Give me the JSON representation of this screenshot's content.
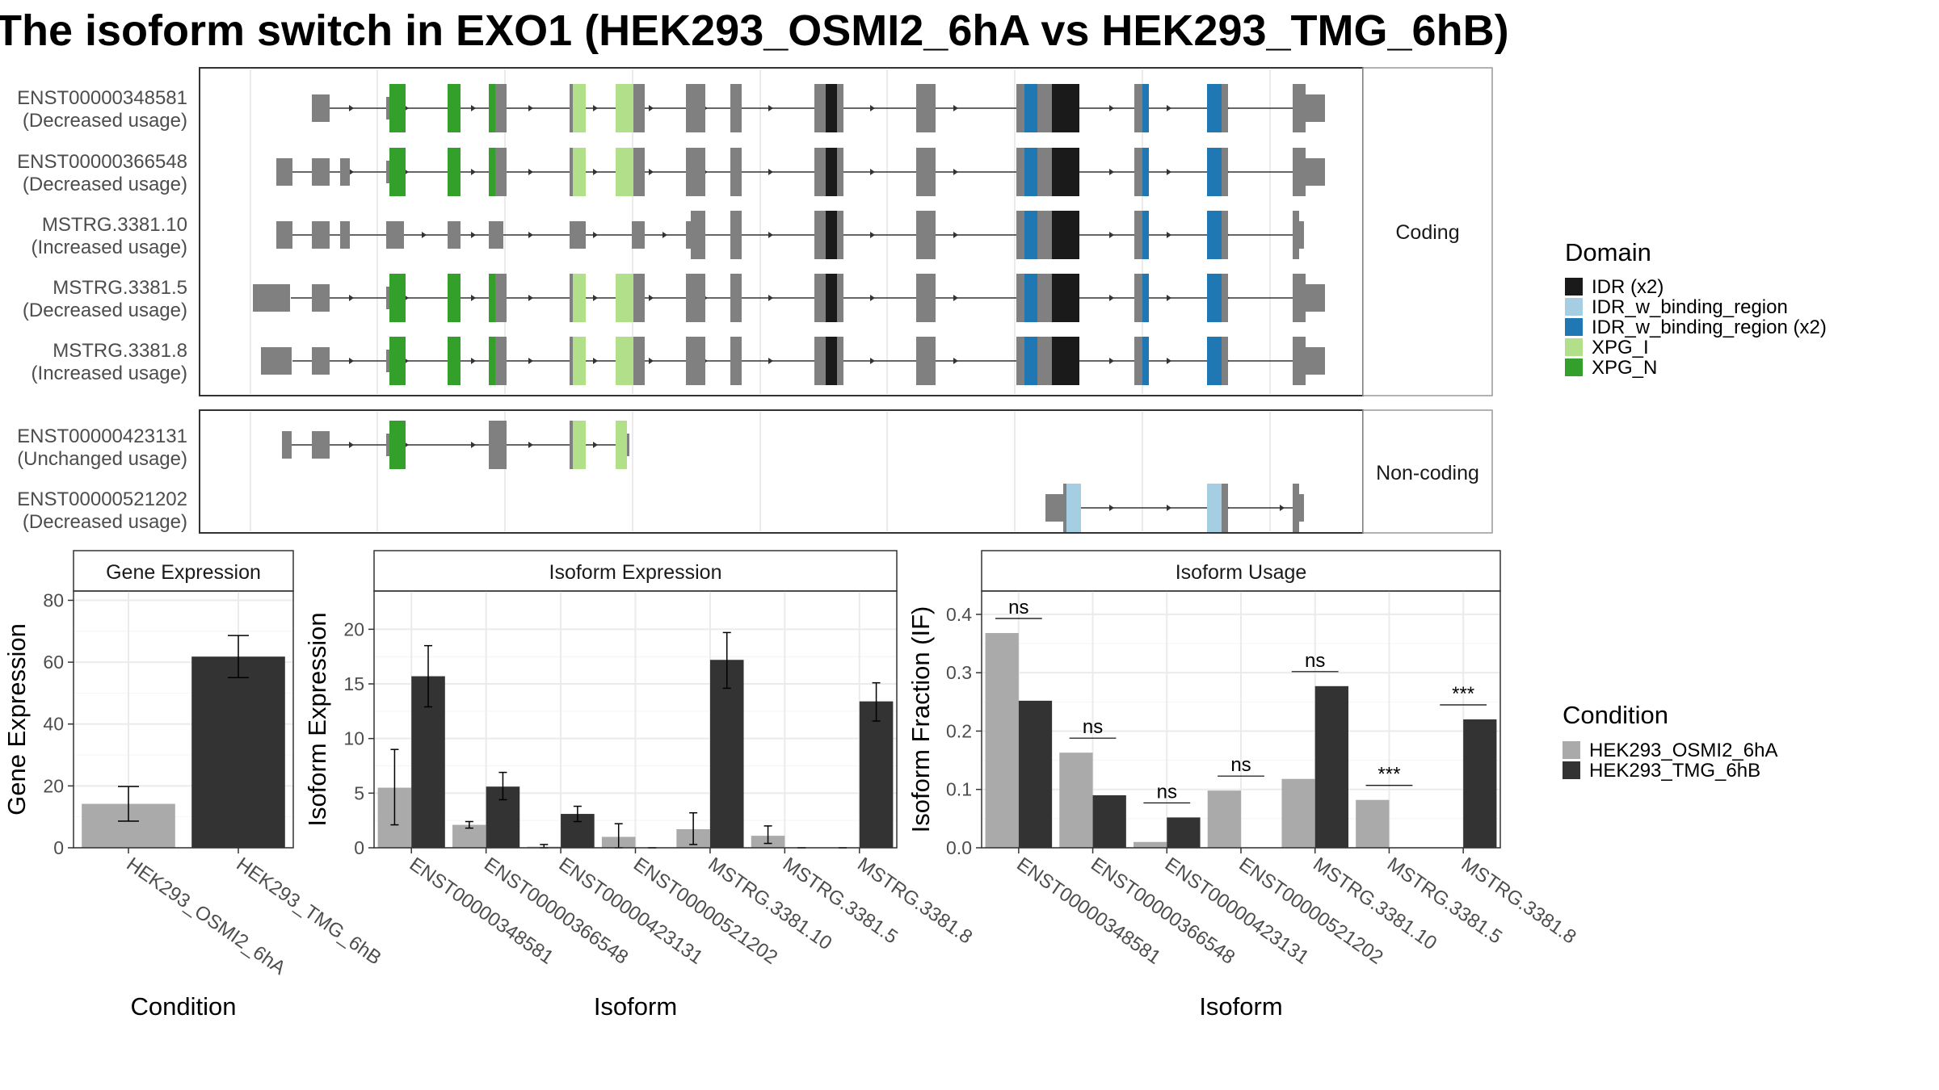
{
  "title": "The isoform switch in EXO1 (HEK293_OSMI2_6hA vs HEK293_TMG_6hB)",
  "colors": {
    "IDR (x2)": "#1a1a1a",
    "IDR_w_binding_region": "#a6cee3",
    "IDR_w_binding_region (x2)": "#1f78b4",
    "XPG_I": "#b2df8a",
    "XPG_N": "#33a02c",
    "exon": "#808080",
    "cond_a": "#aaaaaa",
    "cond_b": "#333333"
  },
  "structure": {
    "facets": [
      "Coding",
      "Non-coding"
    ],
    "exon_ranges": [
      [
        0.0,
        0.03
      ],
      [
        0.05,
        0.08
      ],
      [
        0.08,
        0.12
      ],
      [
        0.14,
        0.21
      ],
      [
        0.25,
        0.4
      ],
      [
        0.42,
        0.55
      ],
      [
        0.6,
        0.66
      ],
      [
        0.7,
        0.78
      ],
      [
        1.0,
        1.0
      ]
    ],
    "isoforms": [
      {
        "id": "ENST00000348581",
        "usage": "(Decreased usage)",
        "facet": "Coding"
      },
      {
        "id": "ENST00000366548",
        "usage": "(Decreased usage)",
        "facet": "Coding"
      },
      {
        "id": "MSTRG.3381.10",
        "usage": "(Increased usage)",
        "facet": "Coding"
      },
      {
        "id": "MSTRG.3381.5",
        "usage": "(Decreased usage)",
        "facet": "Coding"
      },
      {
        "id": "MSTRG.3381.8",
        "usage": "(Increased usage)",
        "facet": "Coding"
      },
      {
        "id": "ENST00000423131",
        "usage": "(Unchanged usage)",
        "facet": "Non-coding"
      },
      {
        "id": "ENST00000521202",
        "usage": "(Decreased usage)",
        "facet": "Non-coding"
      }
    ]
  },
  "domain_legend": {
    "title": "Domain",
    "items": [
      "IDR (x2)",
      "IDR_w_binding_region",
      "IDR_w_binding_region (x2)",
      "XPG_I",
      "XPG_N"
    ]
  },
  "condition_legend": {
    "title": "Condition",
    "items": [
      "HEK293_OSMI2_6hA",
      "HEK293_TMG_6hB"
    ]
  },
  "chart_data": [
    {
      "type": "bar",
      "title": "Gene Expression",
      "xlabel": "Condition",
      "ylabel": "Gene Expression",
      "categories": [
        "HEK293_OSMI2_6hA",
        "HEK293_TMG_6hB"
      ],
      "values": [
        14.2,
        61.8
      ],
      "error": [
        [
          8.6,
          19.8
        ],
        [
          55.0,
          68.6
        ]
      ],
      "ylim": [
        0,
        83
      ],
      "yticks": [
        0,
        20,
        40,
        60,
        80
      ]
    },
    {
      "type": "bar",
      "title": "Isoform Expression",
      "xlabel": "Isoform",
      "ylabel": "Isoform Expression",
      "categories": [
        "ENST00000348581",
        "ENST00000366548",
        "ENST00000423131",
        "ENST00000521202",
        "MSTRG.3381.10",
        "MSTRG.3381.5",
        "MSTRG.3381.8"
      ],
      "series": [
        {
          "name": "HEK293_OSMI2_6hA",
          "values": [
            5.5,
            2.1,
            0.1,
            1.0,
            1.7,
            1.1,
            0.0
          ],
          "error": [
            [
              2.1,
              9.0
            ],
            [
              1.8,
              2.4
            ],
            [
              0.0,
              0.3
            ],
            [
              0.0,
              2.2
            ],
            [
              0.3,
              3.2
            ],
            [
              0.4,
              2.0
            ],
            [
              0.0,
              0.0
            ]
          ]
        },
        {
          "name": "HEK293_TMG_6hB",
          "values": [
            15.7,
            5.6,
            3.1,
            0.0,
            17.2,
            0.0,
            13.4
          ],
          "error": [
            [
              12.9,
              18.5
            ],
            [
              4.4,
              6.9
            ],
            [
              2.4,
              3.8
            ],
            [
              0.0,
              0.0
            ],
            [
              14.6,
              19.7
            ],
            [
              0.0,
              0.0
            ],
            [
              11.6,
              15.1
            ]
          ]
        }
      ],
      "ylim": [
        0,
        23.5
      ],
      "yticks": [
        0,
        5,
        10,
        15,
        20
      ]
    },
    {
      "type": "bar",
      "title": "Isoform Usage",
      "xlabel": "Isoform",
      "ylabel": "Isoform Fraction (IF)",
      "categories": [
        "ENST00000348581",
        "ENST00000366548",
        "ENST00000423131",
        "ENST00000521202",
        "MSTRG.3381.10",
        "MSTRG.3381.5",
        "MSTRG.3381.8"
      ],
      "series": [
        {
          "name": "HEK293_OSMI2_6hA",
          "values": [
            0.368,
            0.163,
            0.01,
            0.098,
            0.118,
            0.082,
            0.0
          ]
        },
        {
          "name": "HEK293_TMG_6hB",
          "values": [
            0.252,
            0.09,
            0.052,
            0.0,
            0.277,
            0.0,
            0.22
          ]
        }
      ],
      "significance": [
        "ns",
        "ns",
        "ns",
        "ns",
        "ns",
        "***",
        "***"
      ],
      "ylim": [
        0,
        0.44
      ],
      "yticks": [
        0.0,
        0.1,
        0.2,
        0.3,
        0.4
      ],
      "ytick_labels": [
        "0.0",
        "0.1",
        "0.2",
        "0.3",
        "0.4"
      ]
    }
  ]
}
